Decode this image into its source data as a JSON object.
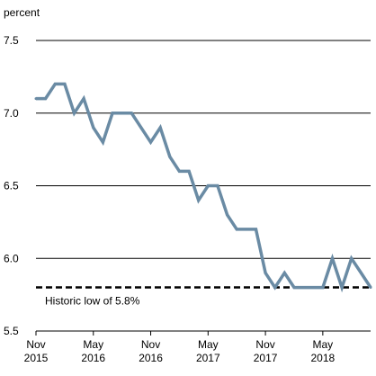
{
  "chart_data": {
    "type": "line",
    "ylabel": "percent",
    "ylim": [
      5.5,
      7.5
    ],
    "y_ticks": [
      "5.5",
      "6.0",
      "6.5",
      "7.0",
      "7.5"
    ],
    "x_ticks": [
      {
        "month": "Nov",
        "year": "2015"
      },
      {
        "month": "May",
        "year": "2016"
      },
      {
        "month": "Nov",
        "year": "2016"
      },
      {
        "month": "May",
        "year": "2017"
      },
      {
        "month": "Nov",
        "year": "2017"
      },
      {
        "month": "May",
        "year": "2018"
      }
    ],
    "x_range": [
      "2015-11",
      "2018-10"
    ],
    "grid": true,
    "series": [
      {
        "color": "#6a8ba4",
        "x": [
          "2015-11",
          "2015-12",
          "2016-01",
          "2016-02",
          "2016-03",
          "2016-04",
          "2016-05",
          "2016-06",
          "2016-07",
          "2016-08",
          "2016-09",
          "2016-10",
          "2016-11",
          "2016-12",
          "2017-01",
          "2017-02",
          "2017-03",
          "2017-04",
          "2017-05",
          "2017-06",
          "2017-07",
          "2017-08",
          "2017-09",
          "2017-10",
          "2017-11",
          "2017-12",
          "2018-01",
          "2018-02",
          "2018-03",
          "2018-04",
          "2018-05",
          "2018-06",
          "2018-07",
          "2018-08",
          "2018-09",
          "2018-10"
        ],
        "values": [
          7.1,
          7.1,
          7.2,
          7.2,
          7.0,
          7.1,
          6.9,
          6.8,
          7.0,
          7.0,
          7.0,
          6.9,
          6.8,
          6.9,
          6.7,
          6.6,
          6.6,
          6.4,
          6.5,
          6.5,
          6.3,
          6.2,
          6.2,
          6.2,
          5.9,
          5.8,
          5.9,
          5.8,
          5.8,
          5.8,
          5.8,
          6.0,
          5.8,
          6.0,
          5.9,
          5.8
        ]
      }
    ],
    "reference_line": {
      "value": 5.8,
      "style": "dashed",
      "color": "#000000",
      "label": "Historic low of 5.8%"
    }
  }
}
